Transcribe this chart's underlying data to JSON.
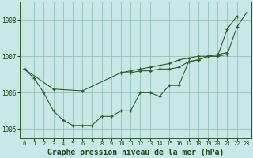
{
  "title": "Graphe pression niveau de la mer (hPa)",
  "bg_color": "#c8e8e8",
  "grid_color": "#88bbaa",
  "line_color": "#2a5e2a",
  "x_labels": [
    "0",
    "1",
    "2",
    "3",
    "4",
    "5",
    "6",
    "7",
    "8",
    "9",
    "10",
    "11",
    "12",
    "13",
    "14",
    "15",
    "16",
    "17",
    "18",
    "19",
    "20",
    "21",
    "22",
    "23"
  ],
  "line1_x": [
    0,
    1,
    2,
    3,
    4,
    5,
    6,
    7,
    8,
    9,
    10,
    11,
    12,
    13,
    14,
    15,
    16,
    17,
    18,
    19,
    20,
    21,
    22
  ],
  "line1_y": [
    1006.65,
    1006.4,
    1006.0,
    1005.5,
    1005.25,
    1005.1,
    1005.1,
    1005.1,
    1005.35,
    1005.35,
    1005.5,
    1005.5,
    1006.0,
    1006.0,
    1005.9,
    1006.2,
    1006.2,
    1006.85,
    1006.9,
    1007.0,
    1007.0,
    1007.75,
    1008.1
  ],
  "line2_x": [
    0,
    3,
    6,
    10,
    11,
    12,
    13,
    14,
    15,
    16,
    17,
    18,
    19,
    20,
    21,
    22,
    23
  ],
  "line2_y": [
    1006.65,
    1006.1,
    1006.05,
    1006.55,
    1006.55,
    1006.6,
    1006.6,
    1006.65,
    1006.65,
    1006.7,
    1006.85,
    1006.9,
    1007.0,
    1007.0,
    1007.05,
    1007.8,
    1008.2
  ],
  "line3_x": [
    10,
    11,
    12,
    13,
    14,
    15,
    16,
    17,
    18,
    19,
    20,
    21
  ],
  "line3_y": [
    1006.55,
    1006.6,
    1006.65,
    1006.7,
    1006.75,
    1006.8,
    1006.9,
    1006.95,
    1007.0,
    1007.0,
    1007.05,
    1007.1
  ],
  "ylim": [
    1004.75,
    1008.5
  ],
  "yticks": [
    1005,
    1006,
    1007,
    1008
  ],
  "ylabel_fontsize": 5.5,
  "xlabel_fontsize": 7.0,
  "xtick_fontsize": 5.0
}
